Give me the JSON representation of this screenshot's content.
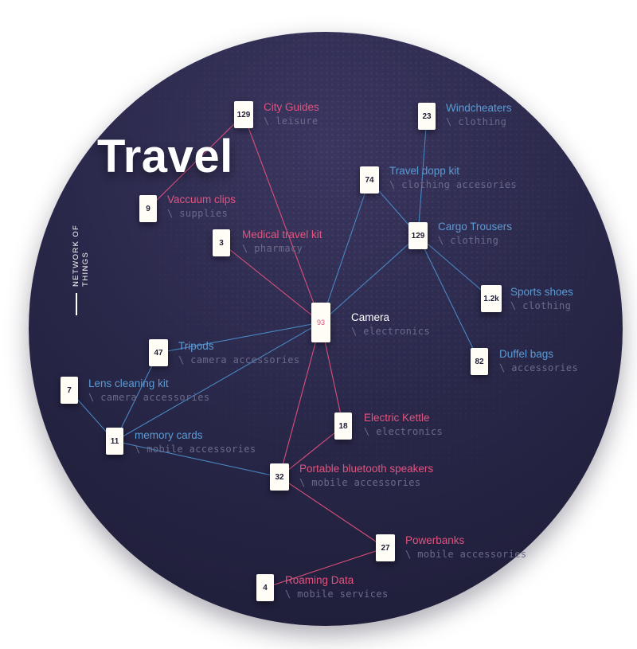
{
  "title": "Travel",
  "subtitle": "NETWORK OF THINGS",
  "colors": {
    "background_dark": "#232240",
    "pink": "#d9507b",
    "blue": "#4a87c2",
    "card": "#fffdf5"
  },
  "nodes": [
    {
      "id": "camera",
      "count": "93",
      "name": "Camera",
      "category": "\\ electronics",
      "color": "white",
      "hub": true
    },
    {
      "id": "city-guides",
      "count": "129",
      "name": "City Guides",
      "category": "\\ leisure",
      "color": "pink"
    },
    {
      "id": "vaccuum-clips",
      "count": "9",
      "name": "Vaccuum clips",
      "category": "\\ supplies",
      "color": "pink"
    },
    {
      "id": "medical-travel-kit",
      "count": "3",
      "name": "Medical travel kit",
      "category": "\\ pharmacy",
      "color": "pink"
    },
    {
      "id": "windcheaters",
      "count": "23",
      "name": "Windcheaters",
      "category": "\\ clothing",
      "color": "blue"
    },
    {
      "id": "travel-dopp-kit",
      "count": "74",
      "name": "Travel dopp kit",
      "category": "\\ clothing accesories",
      "color": "blue"
    },
    {
      "id": "cargo-trousers",
      "count": "129",
      "name": "Cargo Trousers",
      "category": "\\ clothing",
      "color": "blue"
    },
    {
      "id": "sports-shoes",
      "count": "1.2k",
      "name": "Sports shoes",
      "category": "\\ clothing",
      "color": "blue"
    },
    {
      "id": "duffel-bags",
      "count": "82",
      "name": "Duffel bags",
      "category": "\\ accessories",
      "color": "blue"
    },
    {
      "id": "tripods",
      "count": "47",
      "name": "Tripods",
      "category": "\\ camera accessories",
      "color": "blue"
    },
    {
      "id": "lens-cleaning-kit",
      "count": "7",
      "name": "Lens cleaning kit",
      "category": "\\ camera accessories",
      "color": "blue"
    },
    {
      "id": "memory-cards",
      "count": "11",
      "name": "memory cards",
      "category": "\\ mobile accessories",
      "color": "blue"
    },
    {
      "id": "electric-kettle",
      "count": "18",
      "name": "Electric Kettle",
      "category": "\\ electronics",
      "color": "pink"
    },
    {
      "id": "portable-bluetooth-speakers",
      "count": "32",
      "name": "Portable bluetooth speakers",
      "category": "\\ mobile accessories",
      "color": "pink"
    },
    {
      "id": "powerbanks",
      "count": "27",
      "name": "Powerbanks",
      "category": "\\ mobile accessories",
      "color": "pink"
    },
    {
      "id": "roaming-data",
      "count": "4",
      "name": "Roaming Data",
      "category": "\\ mobile services",
      "color": "pink"
    }
  ],
  "edges": [
    {
      "from": "camera",
      "to": "city-guides",
      "color": "pink"
    },
    {
      "from": "camera",
      "to": "medical-travel-kit",
      "color": "pink"
    },
    {
      "from": "city-guides",
      "to": "vaccuum-clips",
      "color": "pink"
    },
    {
      "from": "camera",
      "to": "travel-dopp-kit",
      "color": "blue"
    },
    {
      "from": "camera",
      "to": "cargo-trousers",
      "color": "blue"
    },
    {
      "from": "travel-dopp-kit",
      "to": "cargo-trousers",
      "color": "blue"
    },
    {
      "from": "windcheaters",
      "to": "cargo-trousers",
      "color": "blue"
    },
    {
      "from": "cargo-trousers",
      "to": "sports-shoes",
      "color": "blue"
    },
    {
      "from": "cargo-trousers",
      "to": "duffel-bags",
      "color": "blue"
    },
    {
      "from": "camera",
      "to": "tripods",
      "color": "blue"
    },
    {
      "from": "camera",
      "to": "memory-cards",
      "color": "blue"
    },
    {
      "from": "tripods",
      "to": "memory-cards",
      "color": "blue"
    },
    {
      "from": "lens-cleaning-kit",
      "to": "memory-cards",
      "color": "blue"
    },
    {
      "from": "memory-cards",
      "to": "portable-bluetooth-speakers",
      "color": "blue"
    },
    {
      "from": "camera",
      "to": "electric-kettle",
      "color": "pink"
    },
    {
      "from": "camera",
      "to": "portable-bluetooth-speakers",
      "color": "pink"
    },
    {
      "from": "electric-kettle",
      "to": "portable-bluetooth-speakers",
      "color": "pink"
    },
    {
      "from": "portable-bluetooth-speakers",
      "to": "powerbanks",
      "color": "pink"
    },
    {
      "from": "powerbanks",
      "to": "roaming-data",
      "color": "pink"
    }
  ]
}
